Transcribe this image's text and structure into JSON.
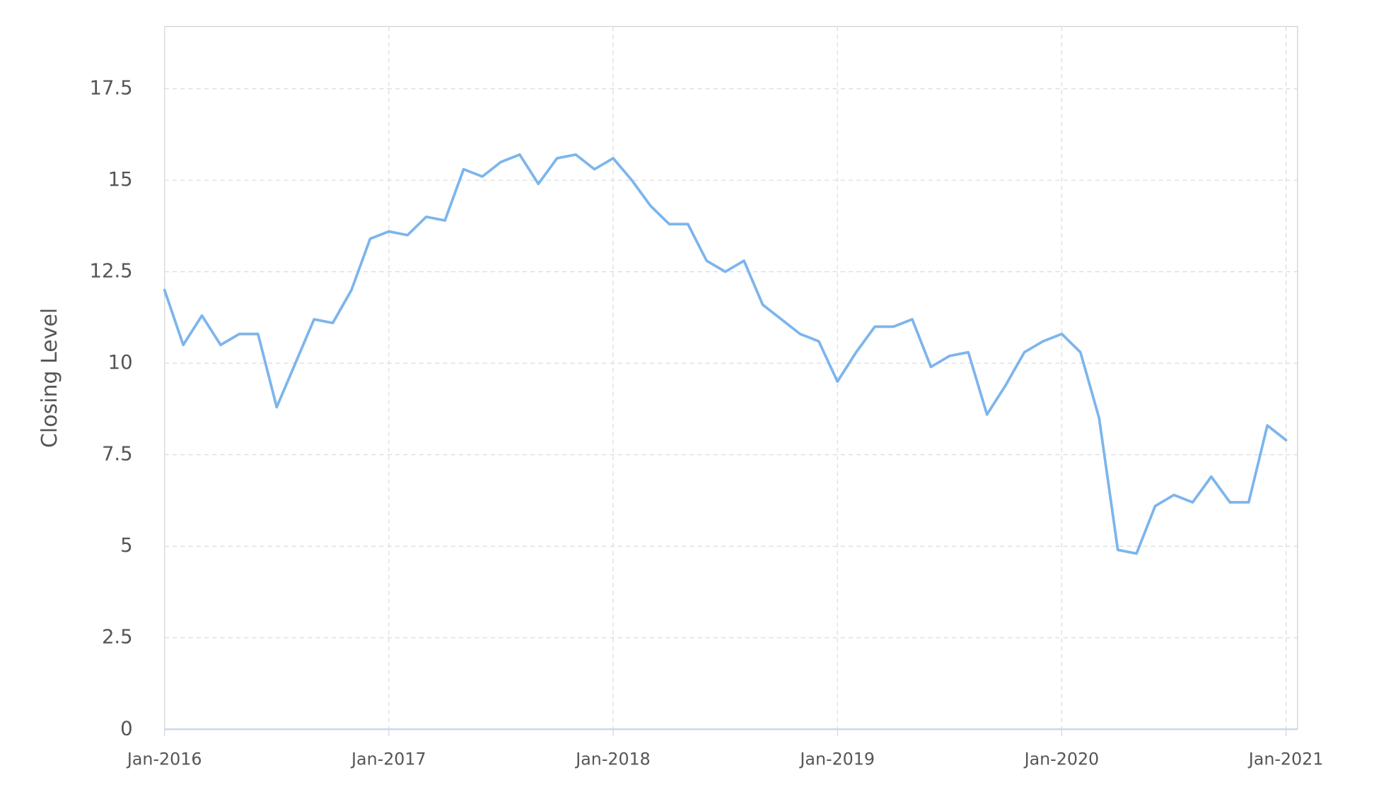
{
  "chart_data": {
    "type": "line",
    "y_label": "Closing Level",
    "color": "#7cb5ec",
    "grid": true,
    "x": [
      "2016-01",
      "2016-02",
      "2016-03",
      "2016-04",
      "2016-05",
      "2016-06",
      "2016-07",
      "2016-08",
      "2016-09",
      "2016-10",
      "2016-11",
      "2016-12",
      "2017-01",
      "2017-02",
      "2017-03",
      "2017-04",
      "2017-05",
      "2017-06",
      "2017-07",
      "2017-08",
      "2017-09",
      "2017-10",
      "2017-11",
      "2017-12",
      "2018-01",
      "2018-02",
      "2018-03",
      "2018-04",
      "2018-05",
      "2018-06",
      "2018-07",
      "2018-08",
      "2018-09",
      "2018-10",
      "2018-11",
      "2018-12",
      "2019-01",
      "2019-02",
      "2019-03",
      "2019-04",
      "2019-05",
      "2019-06",
      "2019-07",
      "2019-08",
      "2019-09",
      "2019-10",
      "2019-11",
      "2019-12",
      "2020-01",
      "2020-02",
      "2020-03",
      "2020-04",
      "2020-05",
      "2020-06",
      "2020-07",
      "2020-08",
      "2020-09",
      "2020-10",
      "2020-11",
      "2020-12",
      "2021-01"
    ],
    "values": [
      12.0,
      10.5,
      11.3,
      10.5,
      10.8,
      10.8,
      8.8,
      10.0,
      11.2,
      11.1,
      12.0,
      13.4,
      13.6,
      13.5,
      14.0,
      13.9,
      15.3,
      15.1,
      15.5,
      15.7,
      14.9,
      15.6,
      15.7,
      15.3,
      15.6,
      15.0,
      14.3,
      13.8,
      13.8,
      12.8,
      12.5,
      12.8,
      11.6,
      11.2,
      10.8,
      10.6,
      9.5,
      10.3,
      11.0,
      11.0,
      11.2,
      9.9,
      10.2,
      10.3,
      8.6,
      9.4,
      10.3,
      10.6,
      10.8,
      10.3,
      8.5,
      4.9,
      4.8,
      6.1,
      6.4,
      6.2,
      6.9,
      6.2,
      6.2,
      8.3,
      7.9
    ],
    "xlim": [
      "2016-01",
      "2021-01"
    ],
    "xticks": [
      {
        "value": "2016-01",
        "label": "Jan-2016"
      },
      {
        "value": "2017-01",
        "label": "Jan-2017"
      },
      {
        "value": "2018-01",
        "label": "Jan-2018"
      },
      {
        "value": "2019-01",
        "label": "Jan-2019"
      },
      {
        "value": "2020-01",
        "label": "Jan-2020"
      },
      {
        "value": "2021-01",
        "label": "Jan-2021"
      }
    ],
    "ylim": [
      0,
      19.2
    ],
    "yticks": [
      0,
      2.5,
      5,
      7.5,
      10,
      12.5,
      15,
      17.5
    ]
  }
}
